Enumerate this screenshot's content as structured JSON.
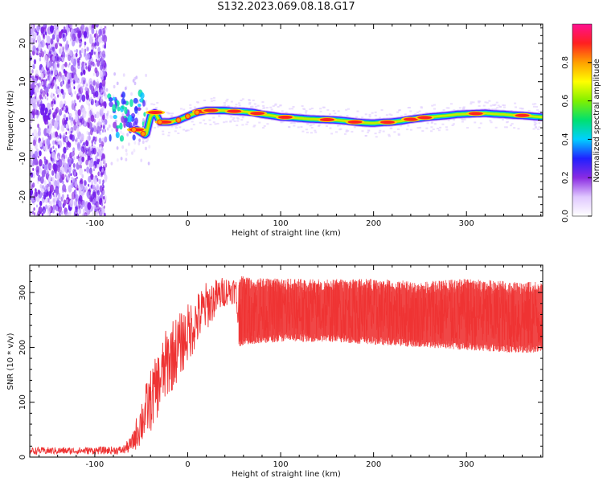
{
  "figure": {
    "title": "S132.2023.069.08.18.G17"
  },
  "chart_data": [
    {
      "type": "heatmap",
      "title": "",
      "xlabel": "Height of straight line (km)",
      "ylabel": "Frequency (Hz)",
      "xlim": [
        -170,
        382
      ],
      "ylim": [
        -25,
        25
      ],
      "x_ticks": [
        -100,
        0,
        100,
        200,
        300
      ],
      "y_ticks": [
        -20,
        -10,
        0,
        10,
        20
      ],
      "colorbar": {
        "label": "Normalized spectral amplitude",
        "range": [
          0.0,
          1.0
        ],
        "ticks": [
          0.0,
          0.2,
          0.4,
          0.6,
          0.8
        ],
        "colors": [
          "#ffffff",
          "#e0c8ff",
          "#8a2be2",
          "#2020ff",
          "#00d0ff",
          "#00e070",
          "#80f000",
          "#ffff00",
          "#ffa000",
          "#ff2020",
          "#ff1090"
        ]
      },
      "ridge": {
        "description_free": true,
        "x": [
          -55,
          -45,
          -40,
          -35,
          -30,
          -20,
          -10,
          0,
          10,
          20,
          30,
          40,
          50,
          60,
          70,
          80,
          90,
          100,
          110,
          120,
          130,
          140,
          150,
          160,
          170,
          180,
          190,
          200,
          210,
          220,
          230,
          240,
          250,
          260,
          270,
          280,
          290,
          300,
          310,
          320,
          330,
          340,
          350,
          360,
          370,
          380
        ],
        "y": [
          -2.5,
          -4,
          1,
          2,
          -0.5,
          -0.5,
          0,
          1,
          2,
          2.5,
          2.5,
          2.5,
          2.3,
          2.2,
          2,
          1.5,
          1.2,
          0.8,
          0.7,
          0.5,
          0.3,
          0.2,
          0.1,
          0,
          -0.2,
          -0.5,
          -0.7,
          -0.8,
          -0.6,
          -0.5,
          -0.2,
          0.2,
          0.5,
          0.8,
          1.0,
          1.2,
          1.5,
          1.6,
          1.7,
          1.8,
          1.6,
          1.5,
          1.3,
          1.2,
          1.0,
          0.8
        ]
      },
      "hotspots_x": [
        -55,
        -35,
        -25,
        15,
        25,
        50,
        75,
        105,
        150,
        180,
        215,
        240,
        255,
        310,
        360
      ]
    },
    {
      "type": "line",
      "title": "",
      "xlabel": "Height of straight line (km)",
      "ylabel": "SNR (10 * v/v)",
      "xlim": [
        -170,
        382
      ],
      "ylim": [
        0,
        350
      ],
      "x_ticks": [
        -100,
        0,
        100,
        200,
        300
      ],
      "y_ticks": [
        0,
        100,
        200,
        300
      ],
      "series": [
        {
          "color": "#ee3333",
          "envelope": {
            "x": [
              -170,
              -120,
              -70,
              -60,
              -50,
              -40,
              -30,
              -20,
              -10,
              0,
              10,
              20,
              30,
              40,
              50,
              55,
              60,
              100,
              150,
              200,
              250,
              300,
              350,
              382
            ],
            "low": [
              5,
              5,
              5,
              8,
              20,
              45,
              80,
              110,
              140,
              170,
              200,
              230,
              255,
              275,
              280,
              200,
              205,
              210,
              210,
              205,
              200,
              195,
              190,
              190
            ],
            "high": [
              18,
              18,
              20,
              40,
              110,
              160,
              200,
              250,
              260,
              280,
              300,
              320,
              325,
              330,
              330,
              330,
              330,
              325,
              325,
              325,
              320,
              325,
              320,
              320
            ]
          }
        }
      ]
    }
  ]
}
